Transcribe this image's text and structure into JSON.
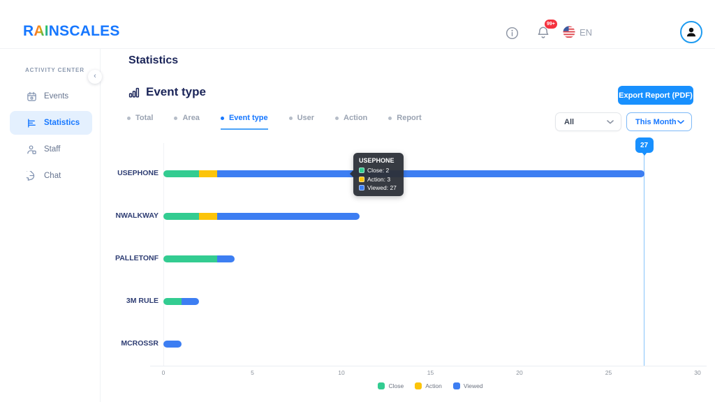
{
  "header": {
    "logo_prefix": "R",
    "logo_ai": "AI",
    "logo_suffix": "NSCALES",
    "notification_count": "99+",
    "language": "EN"
  },
  "sidebar": {
    "section_label": "ACTIVITY CENTER",
    "items": [
      {
        "label": "Events",
        "icon": "calendar-icon",
        "active": false
      },
      {
        "label": "Statistics",
        "icon": "bar-chart-icon",
        "active": true
      },
      {
        "label": "Staff",
        "icon": "staff-icon",
        "active": false
      },
      {
        "label": "Chat",
        "icon": "chat-icon",
        "active": false
      }
    ]
  },
  "main": {
    "page_title": "Statistics",
    "section_title": "Event type",
    "export_label": "Export Report (PDF)",
    "tabs": [
      {
        "label": "Total",
        "active": false
      },
      {
        "label": "Area",
        "active": false
      },
      {
        "label": "Event type",
        "active": true
      },
      {
        "label": "User",
        "active": false
      },
      {
        "label": "Action",
        "active": false
      },
      {
        "label": "Report",
        "active": false
      }
    ],
    "filters": {
      "category": "All",
      "period": "This Month"
    },
    "tooltip": {
      "title": "USEPHONE",
      "rows": [
        {
          "label": "Close",
          "value": "2"
        },
        {
          "label": "Action",
          "value": "3"
        },
        {
          "label": "Viewed",
          "value": "27"
        }
      ]
    },
    "marker_value": "27"
  },
  "chart_data": {
    "type": "bar",
    "orientation": "horizontal",
    "overlapping": true,
    "title": "Event type",
    "categories": [
      "USEPHONE",
      "NWALKWAY",
      "PALLETONF",
      "3M RULE",
      "MCROSSR"
    ],
    "series": [
      {
        "name": "Close",
        "color": "#33cc91",
        "values": [
          2,
          2,
          3,
          1,
          0
        ]
      },
      {
        "name": "Action",
        "color": "#fcc40a",
        "values": [
          3,
          3,
          0,
          0,
          0
        ]
      },
      {
        "name": "Viewed",
        "color": "#3d7ef2",
        "values": [
          27,
          11,
          4,
          2,
          1
        ]
      }
    ],
    "xlim": [
      0,
      30
    ],
    "xticks": [
      0,
      5,
      10,
      15,
      20,
      25,
      30
    ],
    "legend": [
      "Close",
      "Action",
      "Viewed"
    ],
    "legend_position": "bottom-center",
    "grid": false,
    "marker": {
      "category": "USEPHONE",
      "value": 27
    }
  },
  "colors": {
    "accent_blue": "#1677ff",
    "button_blue": "#1890fe",
    "heading_navy": "#1b2559",
    "badge_red": "#f5313d",
    "active_item_bg": "#e4f0fe",
    "marker_line": "#86c5fb",
    "tooltip_bg": "#2c3038"
  }
}
